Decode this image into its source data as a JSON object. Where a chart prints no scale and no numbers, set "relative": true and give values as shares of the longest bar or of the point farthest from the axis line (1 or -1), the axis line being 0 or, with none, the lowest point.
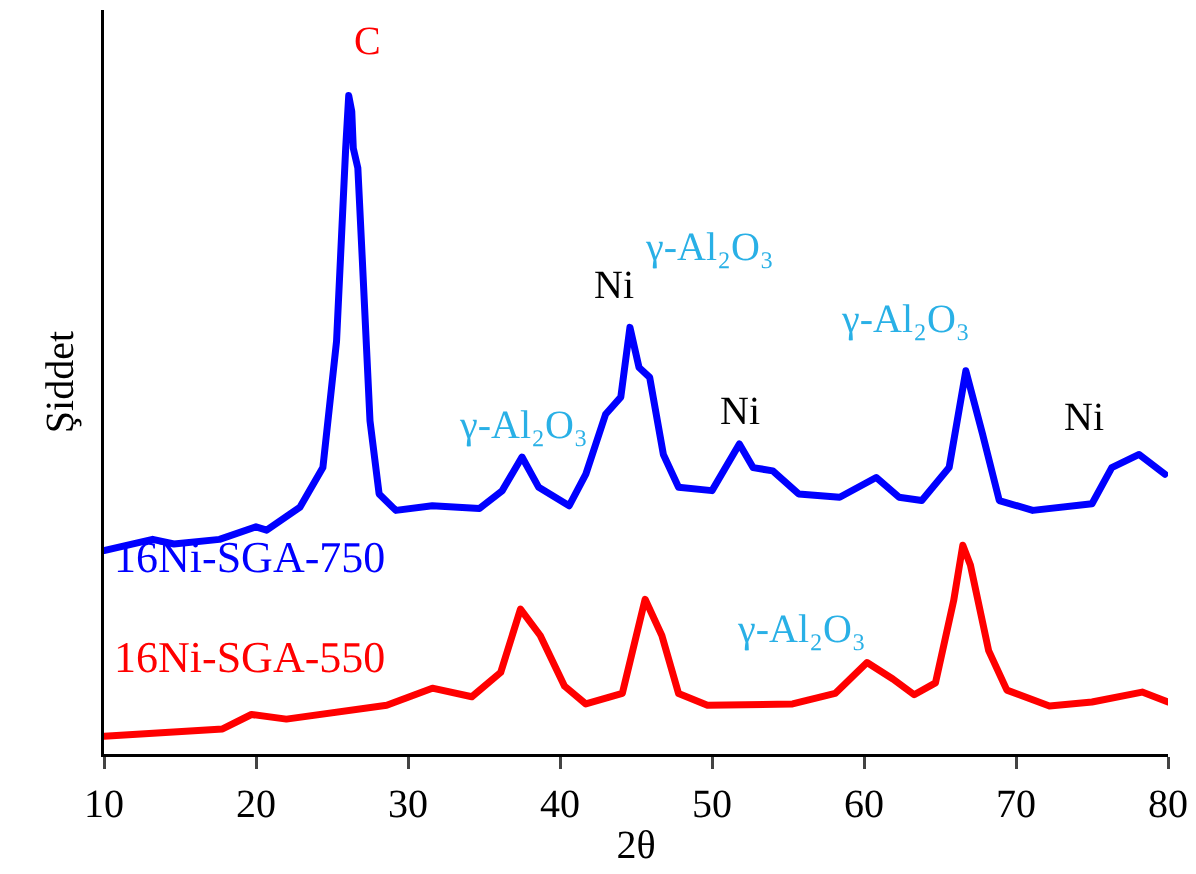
{
  "chart_data": {
    "type": "line",
    "relative": true,
    "xlabel": "2θ",
    "ylabel": "Şiddet",
    "xlim": [
      10,
      80
    ],
    "xticks": [
      10,
      20,
      30,
      40,
      50,
      60,
      70,
      80
    ],
    "grid": false,
    "legend": false,
    "marker": "none",
    "line_style": "solid",
    "series": [
      {
        "name": "16Ni-SGA-750",
        "color": "#0000ff",
        "x": [
          10.0,
          13.2,
          14.6,
          17.6,
          20.0,
          20.7,
          22.9,
          24.4,
          25.3,
          25.9,
          26.1,
          26.3,
          26.4,
          26.7,
          27.0,
          27.5,
          28.1,
          29.2,
          31.6,
          34.7,
          36.2,
          37.5,
          38.6,
          40.6,
          41.7,
          43.0,
          44.0,
          44.6,
          45.2,
          45.9,
          46.8,
          47.8,
          50.0,
          51.8,
          52.7,
          54.0,
          55.7,
          58.4,
          60.8,
          62.3,
          63.8,
          65.6,
          66.7,
          67.8,
          68.9,
          71.1,
          75.0,
          76.3,
          78.1,
          79.8
        ],
        "values": [
          0.309,
          0.326,
          0.319,
          0.326,
          0.345,
          0.34,
          0.375,
          0.435,
          0.627,
          0.92,
          1,
          0.976,
          0.92,
          0.89,
          0.748,
          0.506,
          0.395,
          0.37,
          0.377,
          0.373,
          0.4,
          0.451,
          0.405,
          0.377,
          0.425,
          0.516,
          0.542,
          0.648,
          0.587,
          0.572,
          0.455,
          0.405,
          0.4,
          0.471,
          0.435,
          0.43,
          0.395,
          0.39,
          0.42,
          0.39,
          0.385,
          0.435,
          0.582,
          0.486,
          0.385,
          0.37,
          0.38,
          0.435,
          0.455,
          0.425
        ]
      },
      {
        "name": "16Ni-SGA-550",
        "color": "#ff0000",
        "x": [
          10.0,
          17.8,
          19.7,
          22.0,
          28.6,
          31.6,
          34.2,
          36.1,
          37.4,
          38.7,
          40.3,
          41.7,
          44.1,
          45.6,
          46.7,
          47.8,
          49.7,
          55.3,
          58.1,
          60.2,
          61.9,
          63.3,
          64.7,
          65.9,
          66.5,
          67.0,
          68.2,
          69.4,
          72.2,
          75.0,
          78.3,
          80.0
        ],
        "values": [
          0.027,
          0.038,
          0.06,
          0.053,
          0.074,
          0.1,
          0.087,
          0.124,
          0.22,
          0.18,
          0.103,
          0.076,
          0.092,
          0.235,
          0.18,
          0.092,
          0.074,
          0.076,
          0.092,
          0.139,
          0.114,
          0.09,
          0.108,
          0.233,
          0.317,
          0.287,
          0.157,
          0.097,
          0.073,
          0.079,
          0.094,
          0.079
        ]
      }
    ],
    "annotations": [
      "C",
      "γ-Al₂O₃",
      "Ni",
      "γ-Al₂O₃",
      "Ni",
      "γ-Al₂O₃",
      "Ni",
      "γ-Al₂O₃"
    ]
  }
}
